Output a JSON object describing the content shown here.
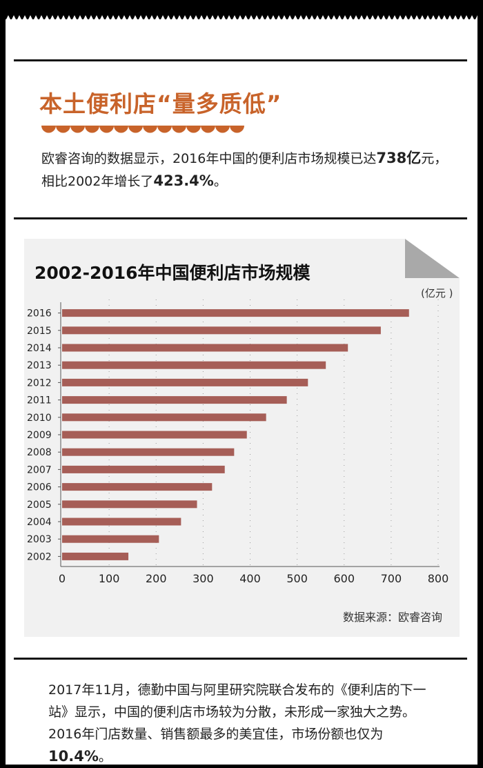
{
  "article": {
    "headline": "本土便利店“量多质低”",
    "intro_p1": "欧睿咨询的数据显示，2016年中国的便利店市场规模已达",
    "intro_value": "738",
    "intro_unit": "亿",
    "intro_p2": "元，相比2002年增长了",
    "intro_growth": "423.4%",
    "intro_end": "。",
    "body_main": "2017年11月，德勤中国与阿里研究院联合发布的《便利店的下一站》显示，中国的便利店市场较为分散，未形成一家独大之势。2016年门店数量、销售额最多的美宜佳，市场份额也仅为",
    "body_share": "10.4%",
    "body_end": "。"
  },
  "chart": {
    "unit": "(亿元 )",
    "source": "数据来源：欧睿咨询"
  },
  "colors": {
    "accent": "#c8632a",
    "bar": "#a65e57",
    "chart_bg": "#f1f1f1",
    "corner_fold": "#a9a9a9"
  },
  "chart_data": {
    "type": "bar",
    "orientation": "horizontal",
    "title": "2002-2016年中国便利店市场规模",
    "categories": [
      "2016",
      "2015",
      "2014",
      "2013",
      "2012",
      "2011",
      "2010",
      "2009",
      "2008",
      "2007",
      "2006",
      "2005",
      "2004",
      "2003",
      "2002"
    ],
    "values": [
      738,
      678,
      608,
      561,
      523,
      478,
      434,
      393,
      366,
      346,
      319,
      287,
      253,
      206,
      141
    ],
    "xlim": [
      0,
      800
    ],
    "xticks": [
      0,
      100,
      200,
      300,
      400,
      500,
      600,
      700,
      800
    ],
    "ylabel": "",
    "xlabel": "",
    "grid": "vertical dotted"
  }
}
